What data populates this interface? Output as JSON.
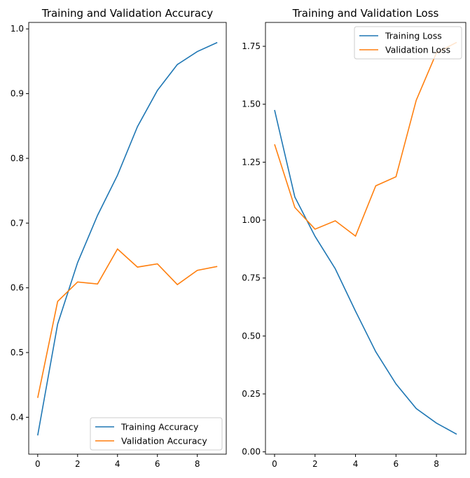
{
  "chart_data": [
    {
      "type": "line",
      "title": "Training and Validation Accuracy",
      "xlabel": "",
      "ylabel": "",
      "x": [
        0,
        1,
        2,
        3,
        4,
        5,
        6,
        7,
        8,
        9
      ],
      "xlim": [
        -0.45,
        9.45
      ],
      "ylim": [
        0.343,
        1.01
      ],
      "xticks": [
        0,
        2,
        4,
        6,
        8
      ],
      "yticks": [
        0.4,
        0.5,
        0.6,
        0.7,
        0.8,
        0.9,
        1.0
      ],
      "ytick_labels": [
        "0.4",
        "0.5",
        "0.6",
        "0.7",
        "0.8",
        "0.9",
        "1.0"
      ],
      "grid": false,
      "legend": "lower right",
      "series": [
        {
          "name": "Training Accuracy",
          "color": "#1f77b4",
          "values": [
            0.372,
            0.544,
            0.639,
            0.712,
            0.774,
            0.849,
            0.905,
            0.945,
            0.965,
            0.979
          ]
        },
        {
          "name": "Validation Accuracy",
          "color": "#ff7f0e",
          "values": [
            0.43,
            0.579,
            0.609,
            0.606,
            0.66,
            0.632,
            0.637,
            0.605,
            0.627,
            0.633
          ]
        }
      ]
    },
    {
      "type": "line",
      "title": "Training and Validation Loss",
      "xlabel": "",
      "ylabel": "",
      "x": [
        0,
        1,
        2,
        3,
        4,
        5,
        6,
        7,
        8,
        9
      ],
      "xlim": [
        -0.45,
        9.45
      ],
      "ylim": [
        -0.01,
        1.853
      ],
      "xticks": [
        0,
        2,
        4,
        6,
        8
      ],
      "yticks": [
        0,
        0.25,
        0.5,
        0.75,
        1.0,
        1.25,
        1.5,
        1.75
      ],
      "ytick_labels": [
        "0.00",
        "0.25",
        "0.50",
        "0.75",
        "1.00",
        "1.25",
        "1.50",
        "1.75"
      ],
      "grid": false,
      "legend": "upper right",
      "series": [
        {
          "name": "Training Loss",
          "color": "#1f77b4",
          "values": [
            1.475,
            1.1,
            0.93,
            0.79,
            0.607,
            0.432,
            0.293,
            0.187,
            0.124,
            0.076
          ]
        },
        {
          "name": "Validation Loss",
          "color": "#ff7f0e",
          "values": [
            1.327,
            1.055,
            0.961,
            0.997,
            0.931,
            1.148,
            1.187,
            1.517,
            1.722,
            1.767
          ]
        }
      ]
    }
  ]
}
